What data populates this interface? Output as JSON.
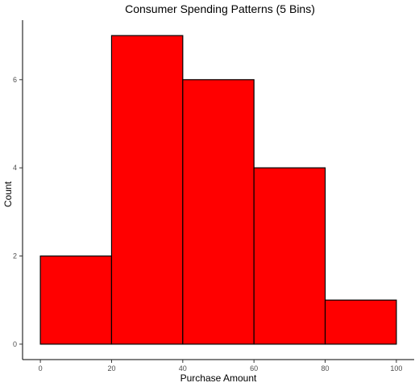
{
  "chart_data": {
    "type": "bar",
    "title": "Consumer Spending Patterns (5 Bins)",
    "xlabel": "Purchase Amount",
    "ylabel": "Count",
    "bins": [
      {
        "start": 0,
        "end": 20,
        "count": 2
      },
      {
        "start": 20,
        "end": 40,
        "count": 7
      },
      {
        "start": 40,
        "end": 60,
        "count": 6
      },
      {
        "start": 60,
        "end": 80,
        "count": 4
      },
      {
        "start": 80,
        "end": 100,
        "count": 1
      }
    ],
    "x_ticks": [
      0,
      20,
      40,
      60,
      80,
      100
    ],
    "y_ticks": [
      0,
      2,
      4,
      6
    ],
    "xlim": [
      -5,
      105
    ],
    "ylim": [
      -0.35,
      7.35
    ],
    "grid": false,
    "legend": "none",
    "colors": {
      "fill": "#ff0000",
      "stroke": "#000000"
    }
  }
}
